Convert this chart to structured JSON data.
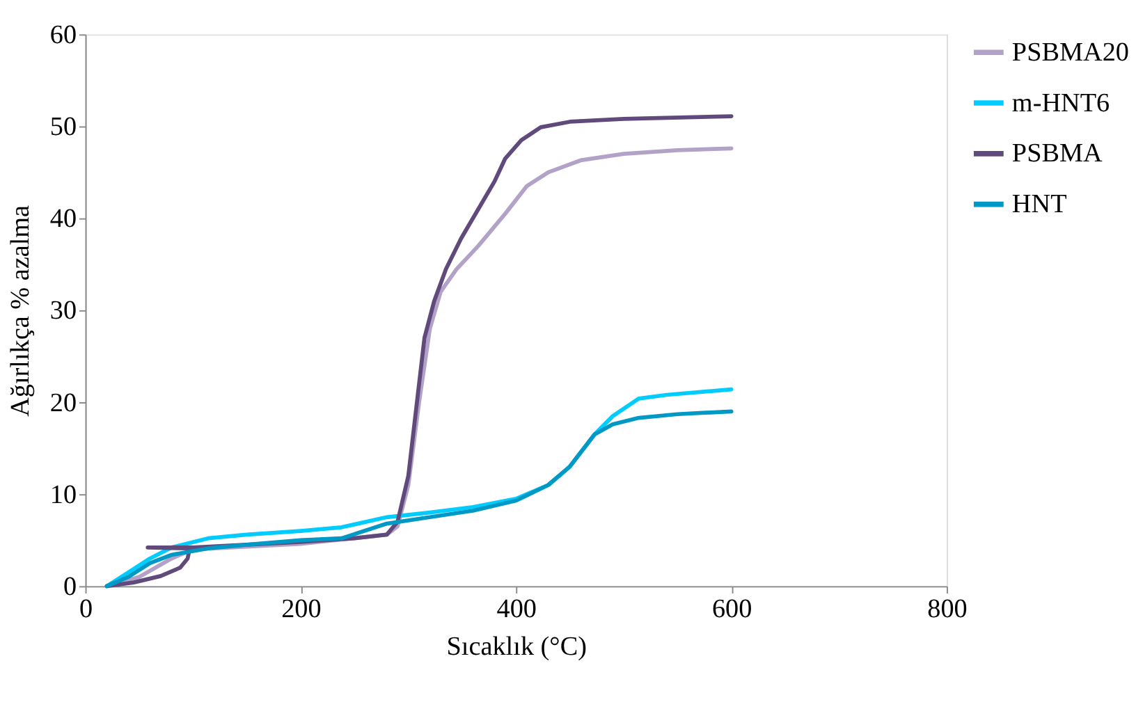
{
  "chart_data": {
    "type": "line",
    "xlabel": "Sıcaklık (°C)",
    "ylabel": "Ağırlıkça % azalma",
    "xlim": [
      0,
      800
    ],
    "xticks": [
      0,
      200,
      400,
      600,
      800
    ],
    "ylim": [
      0,
      60
    ],
    "yticks": [
      0,
      10,
      20,
      30,
      40,
      50,
      60
    ],
    "grid": false,
    "legend": "right",
    "series": [
      {
        "name": "PSBMA20",
        "color": "#b3a2c7",
        "x": [
          20,
          50,
          80,
          100,
          200,
          280,
          290,
          300,
          310,
          320,
          330,
          345,
          365,
          390,
          410,
          430,
          460,
          500,
          550,
          600
        ],
        "values": [
          0,
          1,
          3,
          4,
          4.6,
          5.6,
          6.5,
          11,
          20,
          28,
          32,
          34.5,
          37,
          40.5,
          43.5,
          45,
          46.3,
          47,
          47.4,
          47.6
        ]
      },
      {
        "name": "m-HNT6",
        "color": "#00ccff",
        "x": [
          20,
          40,
          60,
          80,
          114,
          150,
          200,
          238,
          280,
          320,
          360,
          400,
          430,
          450,
          473,
          490,
          514,
          540,
          600
        ],
        "values": [
          0,
          1.5,
          3,
          4.2,
          5.2,
          5.6,
          6,
          6.4,
          7.5,
          8,
          8.6,
          9.5,
          11,
          13,
          16.5,
          18.5,
          20.4,
          20.8,
          21.4
        ]
      },
      {
        "name": "PSBMA",
        "color": "#604a7b",
        "x": [
          20,
          45,
          70,
          88,
          95,
          97,
          58,
          100,
          150,
          200,
          250,
          280,
          290,
          300,
          308,
          315,
          324,
          335,
          349,
          365,
          380,
          390,
          405,
          423,
          450,
          500,
          600
        ],
        "values": [
          0,
          0.4,
          1.1,
          2,
          3,
          4.1,
          4.2,
          4.2,
          4.5,
          4.8,
          5.2,
          5.6,
          7,
          12,
          20,
          27,
          31,
          34.5,
          37.8,
          41,
          44,
          46.5,
          48.5,
          49.9,
          50.5,
          50.8,
          51.1
        ]
      },
      {
        "name": "HNT",
        "color": "#0099c6",
        "x": [
          20,
          40,
          60,
          80,
          114,
          150,
          200,
          238,
          280,
          320,
          360,
          400,
          430,
          450,
          473,
          490,
          514,
          550,
          600
        ],
        "values": [
          0,
          1,
          2.5,
          3.4,
          4.1,
          4.5,
          5,
          5.2,
          6.8,
          7.5,
          8.2,
          9.3,
          11,
          13,
          16.5,
          17.6,
          18.3,
          18.7,
          19
        ]
      }
    ]
  }
}
